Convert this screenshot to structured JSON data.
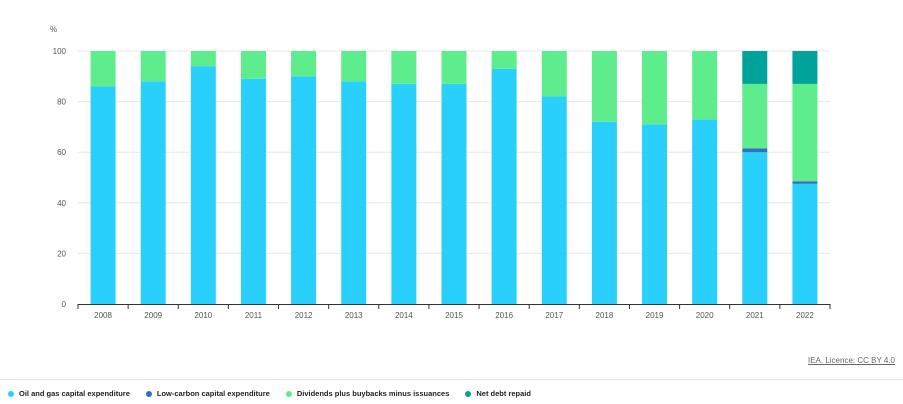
{
  "chart_data": {
    "type": "bar",
    "stacked": true,
    "ylabel": "%",
    "ylim": [
      0,
      100
    ],
    "yticks": [
      0,
      20,
      40,
      60,
      80,
      100
    ],
    "grid": true,
    "legend_position": "bottom-left",
    "categories": [
      "2008",
      "2009",
      "2010",
      "2011",
      "2012",
      "2013",
      "2014",
      "2015",
      "2016",
      "2017",
      "2018",
      "2019",
      "2020",
      "2021",
      "2022"
    ],
    "series": [
      {
        "name": "Oil and gas capital expenditure",
        "color": "#29d0fc",
        "values": [
          86,
          88,
          94,
          89,
          90,
          88,
          87,
          87,
          93,
          82,
          72,
          71,
          73,
          60,
          47.5
        ]
      },
      {
        "name": "Low-carbon capital expenditure",
        "color": "#2f6fc4",
        "values": [
          0,
          0,
          0,
          0,
          0,
          0,
          0,
          0,
          0,
          0,
          0,
          0,
          0,
          1.5,
          1
        ]
      },
      {
        "name": "Dividends plus buybacks minus issuances",
        "color": "#5ded8c",
        "values": [
          14,
          12,
          6,
          11,
          10,
          12,
          13,
          13,
          7,
          18,
          28,
          29,
          27,
          25.5,
          38.5
        ]
      },
      {
        "name": "Net debt repaid",
        "color": "#00a39a",
        "values": [
          0,
          0,
          0,
          0,
          0,
          0,
          0,
          0,
          0,
          0,
          0,
          0,
          0,
          13,
          13
        ]
      }
    ]
  },
  "credit": "IEA. Licence: CC BY 4.0"
}
